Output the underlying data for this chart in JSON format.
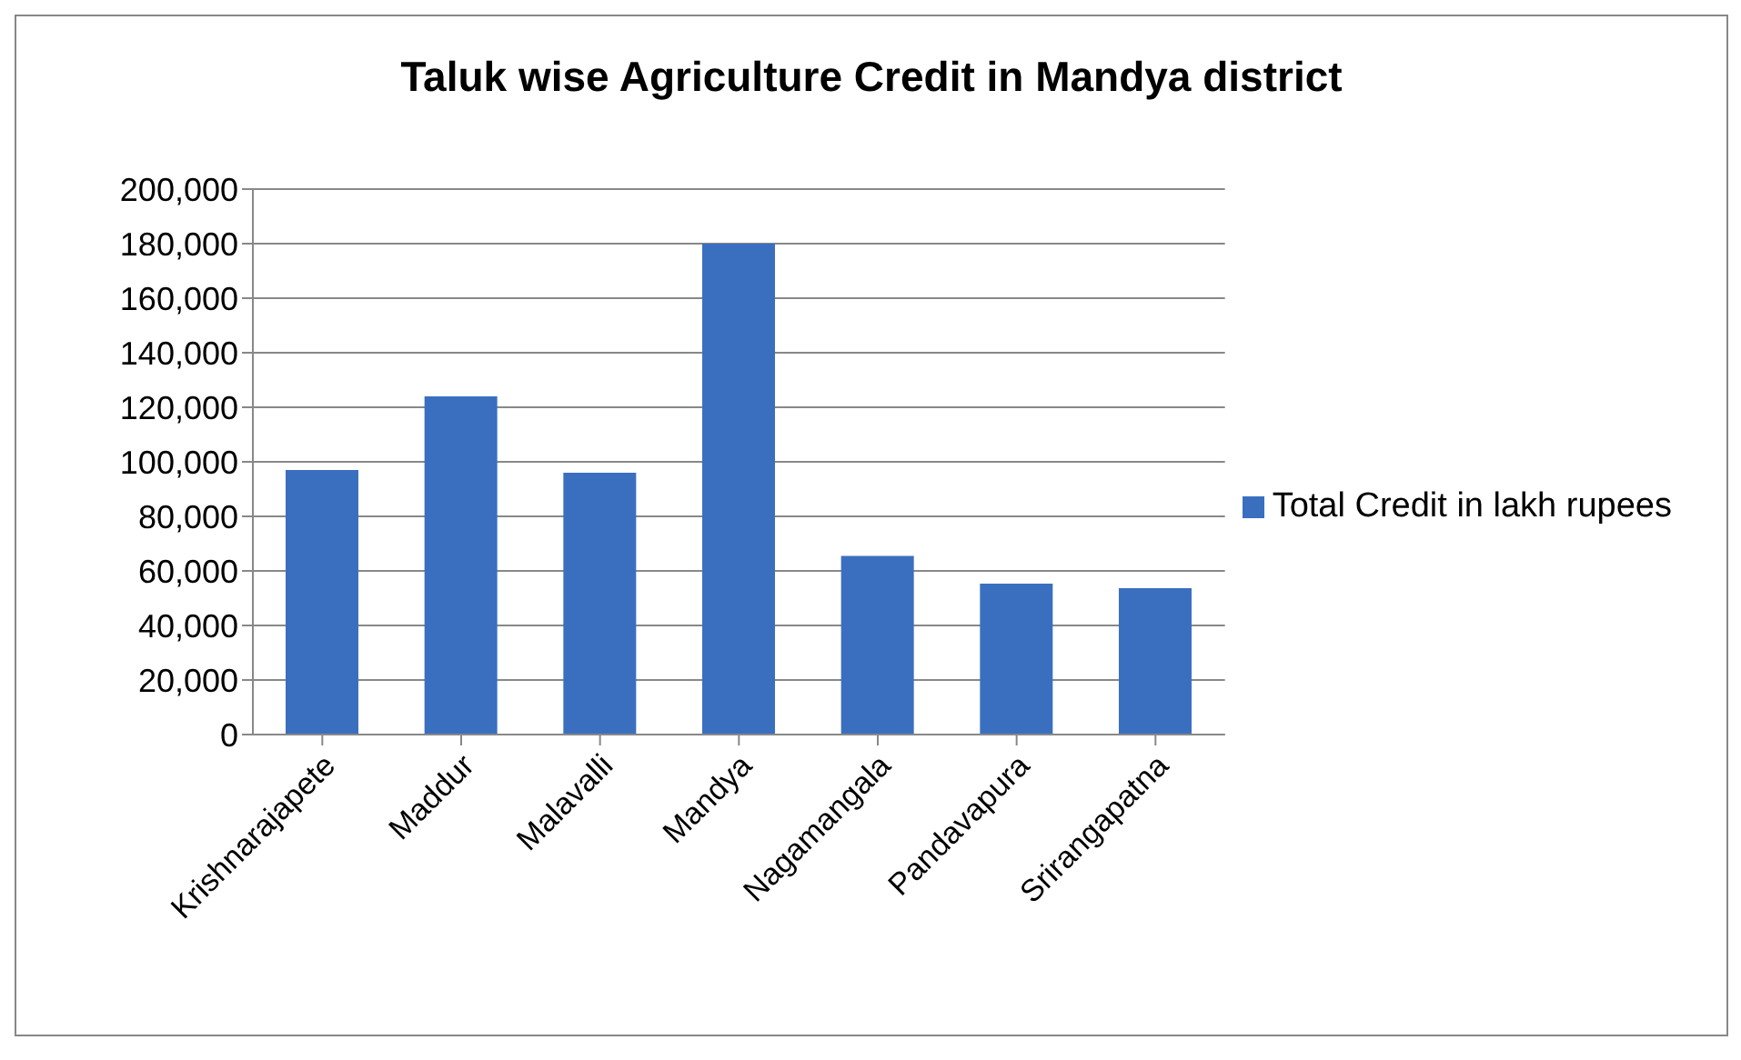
{
  "chart_data": {
    "type": "bar",
    "title": "Taluk wise Agriculture Credit in Mandya district",
    "categories": [
      "Krishnarajapete",
      "Maddur",
      "Malavalli",
      "Mandya",
      "Nagamangala",
      "Pandavapura",
      "Srirangapatna"
    ],
    "series": [
      {
        "name": "Total Credit in lakh rupees",
        "color": "#3a6fc0",
        "values": [
          97000,
          124000,
          96000,
          180000,
          65500,
          55300,
          53700
        ]
      }
    ],
    "ylim": [
      0,
      200000
    ],
    "yticks": [
      {
        "value": 0,
        "label": "0"
      },
      {
        "value": 20000,
        "label": "20,000"
      },
      {
        "value": 40000,
        "label": "40,000"
      },
      {
        "value": 60000,
        "label": "60,000"
      },
      {
        "value": 80000,
        "label": "80,000"
      },
      {
        "value": 100000,
        "label": "100,000"
      },
      {
        "value": 120000,
        "label": "120,000"
      },
      {
        "value": 140000,
        "label": "140,000"
      },
      {
        "value": 160000,
        "label": "160,000"
      },
      {
        "value": 180000,
        "label": "180,000"
      },
      {
        "value": 200000,
        "label": "200,000"
      }
    ],
    "grid": "y",
    "legend": "right"
  }
}
